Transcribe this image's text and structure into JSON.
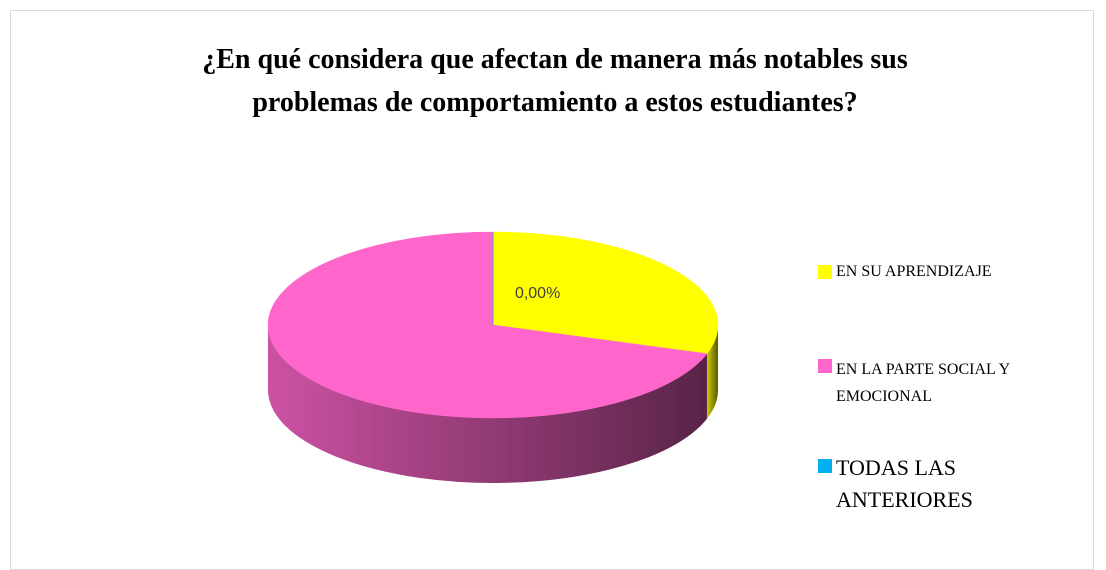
{
  "chart_data": {
    "type": "pie3d",
    "title": "¿En qué considera que afectan de manera más notables sus problemas de comportamiento a estos estudiantes?",
    "categories": [
      "EN SU APRENDIZAJE",
      "EN LA PARTE SOCIAL Y EMOCIONAL",
      "TODAS LAS ANTERIORES"
    ],
    "values": [
      30,
      70,
      0
    ],
    "value_labels": [
      null,
      null,
      "0,00%"
    ],
    "colors": [
      "#ffff00",
      "#ff66cc",
      "#00b0f0"
    ],
    "legend": "right"
  }
}
